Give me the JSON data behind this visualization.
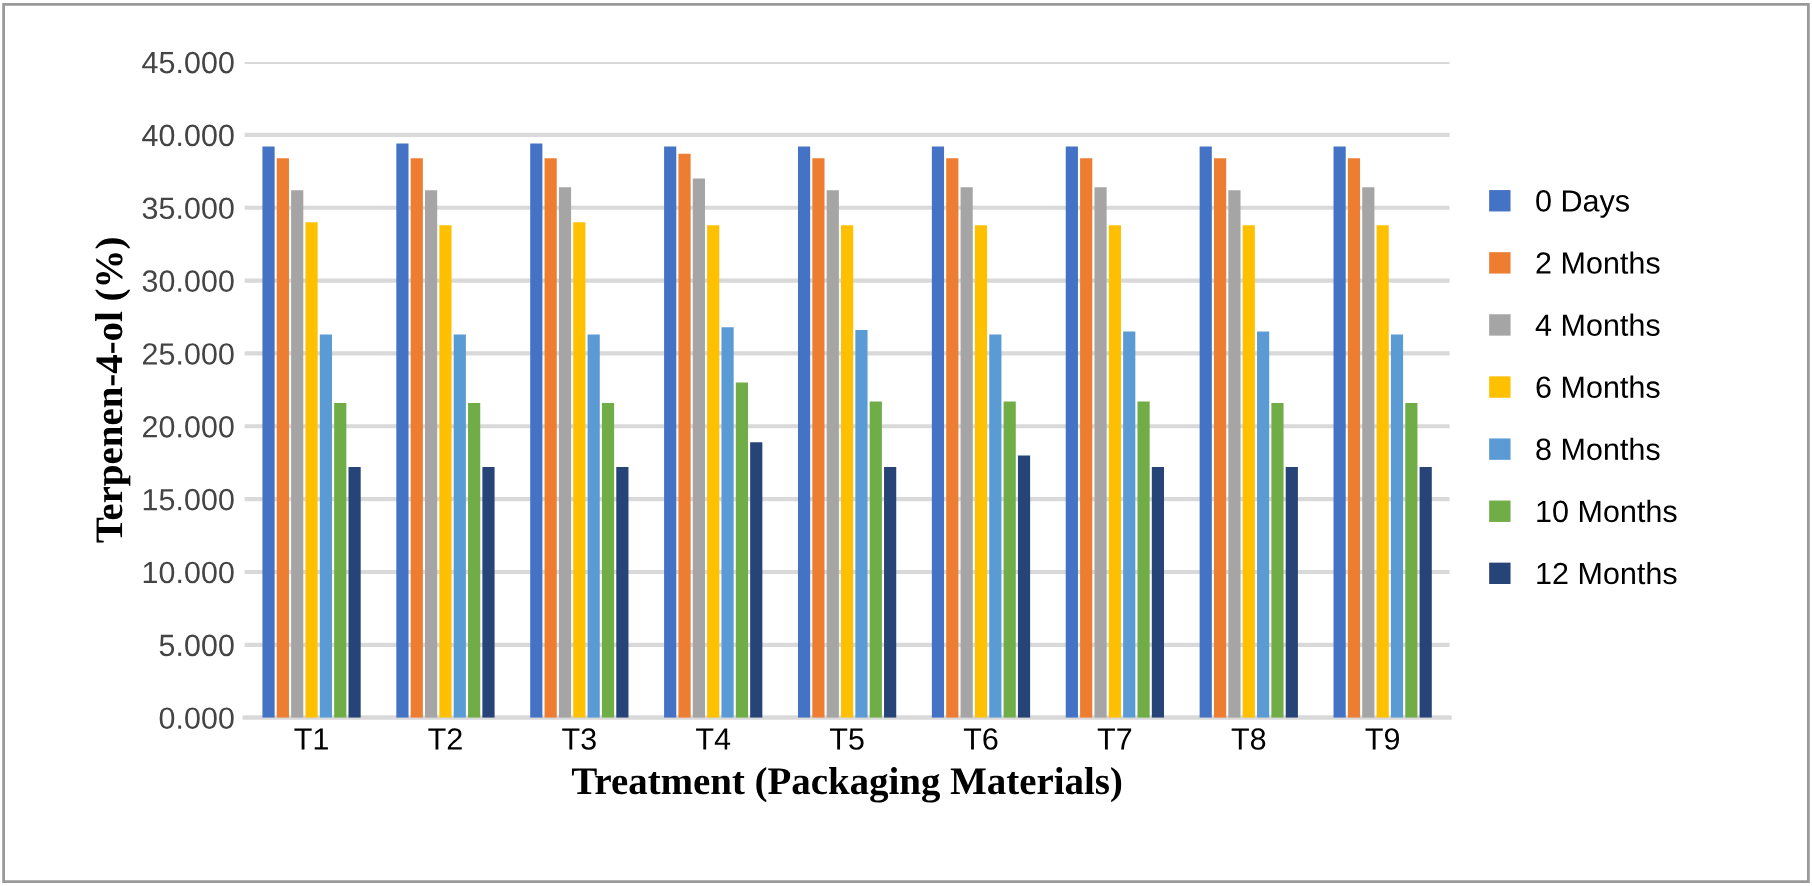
{
  "chart_data": {
    "type": "bar",
    "xlabel": "Treatment (Packaging Materials)",
    "ylabel": "Terpenen-4-ol (%)",
    "categories": [
      "T1",
      "T2",
      "T3",
      "T4",
      "T5",
      "T6",
      "T7",
      "T8",
      "T9"
    ],
    "series": [
      {
        "name": "0 Days",
        "color": "#4472c4",
        "values": [
          39.2,
          39.4,
          39.4,
          39.2,
          39.2,
          39.2,
          39.2,
          39.2,
          39.2
        ]
      },
      {
        "name": "2 Months",
        "color": "#ed7d31",
        "values": [
          38.4,
          38.4,
          38.4,
          38.7,
          38.4,
          38.4,
          38.4,
          38.4,
          38.4
        ]
      },
      {
        "name": "4 Months",
        "color": "#a5a5a5",
        "values": [
          36.2,
          36.2,
          36.4,
          37.0,
          36.2,
          36.4,
          36.4,
          36.2,
          36.4
        ]
      },
      {
        "name": "6 Months",
        "color": "#ffc000",
        "values": [
          34.0,
          33.8,
          34.0,
          33.8,
          33.8,
          33.8,
          33.8,
          33.8,
          33.8
        ]
      },
      {
        "name": "8 Months",
        "color": "#5b9bd5",
        "values": [
          26.3,
          26.3,
          26.3,
          26.8,
          26.6,
          26.3,
          26.5,
          26.5,
          26.3
        ]
      },
      {
        "name": "10 Months",
        "color": "#70ad47",
        "values": [
          21.6,
          21.6,
          21.6,
          23.0,
          21.7,
          21.7,
          21.7,
          21.6,
          21.6
        ]
      },
      {
        "name": "12 Months",
        "color": "#264478",
        "values": [
          17.2,
          17.2,
          17.2,
          18.9,
          17.2,
          18.0,
          17.2,
          17.2,
          17.2
        ]
      }
    ],
    "ylim": [
      0,
      45
    ],
    "yticks": [
      {
        "value": 0,
        "label": "0.000"
      },
      {
        "value": 5,
        "label": "5.000"
      },
      {
        "value": 10,
        "label": "10.000"
      },
      {
        "value": 15,
        "label": "15.000"
      },
      {
        "value": 20,
        "label": "20.000"
      },
      {
        "value": 25,
        "label": "25.000"
      },
      {
        "value": 30,
        "label": "30.000"
      },
      {
        "value": 35,
        "label": "35.000"
      },
      {
        "value": 40,
        "label": "40.000"
      },
      {
        "value": 45,
        "label": "45.000"
      }
    ],
    "grid": "y",
    "legend": "right"
  }
}
